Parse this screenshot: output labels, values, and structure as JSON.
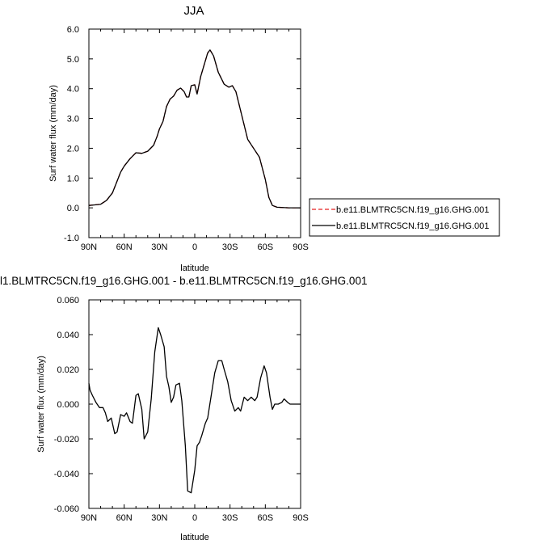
{
  "chart_data": [
    {
      "type": "line",
      "title": "JJA",
      "xlabel": "latitude",
      "ylabel": "Surf water flux (mm/day)",
      "xlim": [
        90,
        -90
      ],
      "ylim": [
        -1.0,
        6.0
      ],
      "xticks": [
        90,
        60,
        30,
        0,
        -30,
        -60,
        -90
      ],
      "xtick_labels": [
        "90N",
        "60N",
        "30N",
        "0",
        "30S",
        "60S",
        "90S"
      ],
      "yticks": [
        -1,
        0,
        1,
        2,
        3,
        4,
        5,
        6
      ],
      "ytick_labels": [
        "-1.0",
        "0.0",
        "1.0",
        "2.0",
        "3.0",
        "4.0",
        "5.0",
        "6.0"
      ],
      "grid": false,
      "legend": "outside-right",
      "x": [
        90,
        85,
        80,
        75,
        70,
        66,
        63,
        60,
        55,
        50,
        45,
        40,
        35,
        32,
        30,
        27,
        24,
        21,
        18,
        15,
        12,
        9,
        7,
        5,
        3,
        0,
        -2,
        -5,
        -8,
        -11,
        -13,
        -16,
        -20,
        -25,
        -29,
        -32,
        -35,
        -40,
        -45,
        -50,
        -55,
        -60,
        -63,
        -66,
        -70,
        -75,
        -80,
        -85,
        -90
      ],
      "series": [
        {
          "name": "b.e11.BLMTRC5CN.f19_g16.GHG.001",
          "color": "#e62020",
          "dash": "dashed",
          "values": [
            0.08,
            0.1,
            0.12,
            0.25,
            0.5,
            0.9,
            1.2,
            1.4,
            1.65,
            1.85,
            1.83,
            1.9,
            2.1,
            2.4,
            2.65,
            2.9,
            3.4,
            3.65,
            3.75,
            3.95,
            4.02,
            3.9,
            3.72,
            3.72,
            4.1,
            4.13,
            3.82,
            4.4,
            4.8,
            5.2,
            5.3,
            5.1,
            4.55,
            4.15,
            4.05,
            4.1,
            3.9,
            3.1,
            2.3,
            2.0,
            1.7,
            0.95,
            0.35,
            0.08,
            0.02,
            0.01,
            0.0,
            0.0,
            0.0
          ]
        },
        {
          "name": "b.e11.BLMTRC5CN.f19_g16.GHG.001",
          "color": "#000000",
          "dash": "solid",
          "values": [
            0.08,
            0.1,
            0.12,
            0.25,
            0.5,
            0.9,
            1.2,
            1.4,
            1.65,
            1.85,
            1.83,
            1.9,
            2.1,
            2.4,
            2.65,
            2.9,
            3.4,
            3.65,
            3.75,
            3.95,
            4.02,
            3.9,
            3.72,
            3.72,
            4.1,
            4.13,
            3.82,
            4.4,
            4.8,
            5.2,
            5.3,
            5.1,
            4.55,
            4.15,
            4.05,
            4.1,
            3.9,
            3.1,
            2.3,
            2.0,
            1.7,
            0.95,
            0.35,
            0.08,
            0.02,
            0.01,
            0.0,
            0.0,
            0.0
          ]
        }
      ]
    },
    {
      "type": "line",
      "title": "l1.BLMTRC5CN.f19_g16.GHG.001 - b.e11.BLMTRC5CN.f19_g16.GHG.001",
      "xlabel": "latitude",
      "ylabel": "Surf water flux (mm/day)",
      "xlim": [
        90,
        -90
      ],
      "ylim": [
        -0.06,
        0.06
      ],
      "xticks": [
        90,
        60,
        30,
        0,
        -30,
        -60,
        -90
      ],
      "xtick_labels": [
        "90N",
        "60N",
        "30N",
        "0",
        "30S",
        "60S",
        "90S"
      ],
      "yticks": [
        -0.06,
        -0.04,
        -0.02,
        0.0,
        0.02,
        0.04,
        0.06
      ],
      "ytick_labels": [
        "-0.060",
        "-0.040",
        "-0.020",
        "0.000",
        "0.020",
        "0.040",
        "0.060"
      ],
      "grid": false,
      "x": [
        90,
        89,
        87,
        84,
        81,
        78,
        76,
        74,
        71,
        68,
        66,
        63,
        60,
        58,
        55,
        53,
        50,
        48,
        45,
        43,
        40,
        37,
        34,
        31,
        29,
        26,
        24,
        22,
        20,
        18,
        16,
        13,
        11,
        8,
        6,
        3,
        0,
        -2,
        -4,
        -6,
        -9,
        -11,
        -14,
        -17,
        -20,
        -23,
        -25,
        -28,
        -31,
        -34,
        -37,
        -39,
        -42,
        -45,
        -48,
        -51,
        -53,
        -56,
        -59,
        -61,
        -64,
        -66,
        -68,
        -71,
        -74,
        -76,
        -79,
        -81,
        -84,
        -87,
        -90
      ],
      "series": [
        {
          "name": "",
          "color": "#000000",
          "dash": "solid",
          "values": [
            0.012,
            0.008,
            0.005,
            0.001,
            -0.002,
            -0.002,
            -0.005,
            -0.01,
            -0.008,
            -0.017,
            -0.016,
            -0.006,
            -0.007,
            -0.005,
            -0.01,
            -0.011,
            0.005,
            0.006,
            -0.003,
            -0.02,
            -0.016,
            0.003,
            0.03,
            0.044,
            0.04,
            0.033,
            0.016,
            0.01,
            0.001,
            0.004,
            0.011,
            0.012,
            0.002,
            -0.024,
            -0.05,
            -0.051,
            -0.038,
            -0.024,
            -0.022,
            -0.018,
            -0.011,
            -0.008,
            0.005,
            0.018,
            0.025,
            0.025,
            0.02,
            0.013,
            0.002,
            -0.004,
            -0.002,
            -0.004,
            0.004,
            0.002,
            0.004,
            0.002,
            0.004,
            0.015,
            0.022,
            0.018,
            0.004,
            -0.003,
            0.0,
            0.0,
            0.001,
            0.003,
            0.001,
            0.0,
            0.0,
            0.0,
            0.0
          ]
        }
      ]
    }
  ]
}
